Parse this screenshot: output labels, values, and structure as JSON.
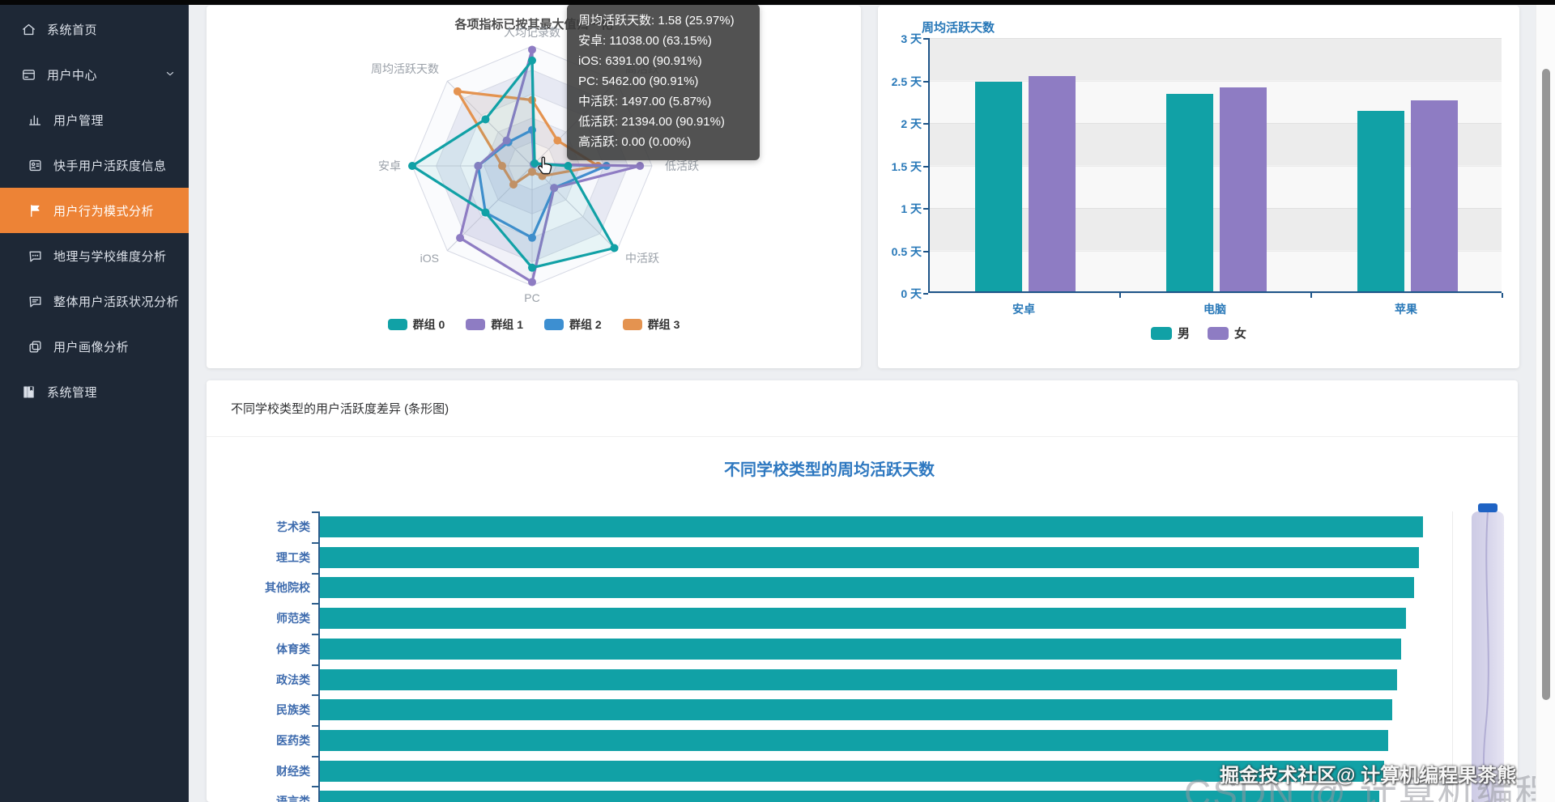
{
  "sidebar": {
    "items": [
      {
        "name": "system-home",
        "label": "系统首页",
        "icon": "home-icon",
        "indent": false,
        "active": false,
        "chevron": false
      },
      {
        "name": "user-center",
        "label": "用户中心",
        "icon": "window-icon",
        "indent": false,
        "active": false,
        "chevron": true
      },
      {
        "name": "user-management",
        "label": "用户管理",
        "icon": "bar-chart-icon",
        "indent": true,
        "active": false,
        "chevron": false
      },
      {
        "name": "kuaishou-activity-info",
        "label": "快手用户活跃度信息",
        "icon": "id-card-icon",
        "indent": true,
        "active": false,
        "chevron": false
      },
      {
        "name": "behavior-pattern-analysis",
        "label": "用户行为模式分析",
        "icon": "flag-icon",
        "indent": true,
        "active": true,
        "chevron": false
      },
      {
        "name": "geo-school-analysis",
        "label": "地理与学校维度分析",
        "icon": "comment-dots-icon",
        "indent": true,
        "active": false,
        "chevron": false
      },
      {
        "name": "overall-activity-analysis",
        "label": "整体用户活跃状况分析",
        "icon": "comment-icon",
        "indent": true,
        "active": false,
        "chevron": false
      },
      {
        "name": "user-portrait-analysis",
        "label": "用户画像分析",
        "icon": "copy-icon",
        "indent": true,
        "active": false,
        "chevron": false
      },
      {
        "name": "system-management",
        "label": "系统管理",
        "icon": "notebook-icon",
        "indent": false,
        "active": false,
        "chevron": false
      }
    ]
  },
  "radar_card": {
    "title": "各项指标已按其最大值归一化"
  },
  "gender_card": {
    "title": "周均活跃天数"
  },
  "school_card": {
    "header": "不同学校类型的用户活跃度差异 (条形图)",
    "chart_title": "不同学校类型的周均活跃天数"
  },
  "tooltip": {
    "lines": [
      "周均活跃天数: 1.58 (25.97%)",
      "安卓: 11038.00 (63.15%)",
      "iOS: 6391.00 (90.91%)",
      "PC: 5462.00 (90.91%)",
      "中活跃: 1497.00 (5.87%)",
      "低活跃: 21394.00 (90.91%)",
      "高活跃: 0.00 (0.00%)"
    ]
  },
  "watermark": {
    "small": "掘金技术社区@ 计算机编程果茶熊",
    "large": "CSDN @ 计算机编程果茶熊"
  },
  "colors": {
    "accent_orange": "#ed8336",
    "teal": "#11a1a6",
    "purple": "#8e7cc3",
    "blue": "#3d8fd1",
    "orange": "#e49350",
    "axis_blue": "#2878b8"
  },
  "chart_data": [
    {
      "id": "radar",
      "type": "radar",
      "title": "各项指标已按其最大值归一化",
      "axes": [
        "人均记录数",
        "高活跃",
        "低活跃",
        "中活跃",
        "PC",
        "iOS",
        "安卓",
        "周均活跃天数"
      ],
      "value_scale": "fraction of axis max (normalized)",
      "series": [
        {
          "name": "群组 0",
          "color": "#11a1a6",
          "values": [
            0.88,
            0.03,
            0.3,
            0.97,
            0.85,
            0.55,
            1.0,
            0.55
          ]
        },
        {
          "name": "群组 1",
          "color": "#8e7cc3",
          "values": [
            0.97,
            0.02,
            0.9,
            0.26,
            0.97,
            0.85,
            0.45,
            0.3
          ]
        },
        {
          "name": "群组 2",
          "color": "#3d8fd1",
          "values": [
            0.3,
            0.02,
            0.62,
            0.26,
            0.6,
            0.55,
            0.45,
            0.28
          ]
        },
        {
          "name": "群组 3",
          "color": "#e49350",
          "values": [
            0.55,
            0.3,
            0.55,
            0.12,
            0.05,
            0.22,
            0.25,
            0.88
          ]
        }
      ],
      "legend": [
        "群组 0",
        "群组 1",
        "群组 2",
        "群组 3"
      ],
      "legend_position": "bottom"
    },
    {
      "id": "gender-device",
      "type": "bar",
      "title": "周均活跃天数",
      "categories": [
        "安卓",
        "电脑",
        "苹果"
      ],
      "series": [
        {
          "name": "男",
          "color": "#11a1a6",
          "values": [
            2.47,
            2.32,
            2.12
          ]
        },
        {
          "name": "女",
          "color": "#8e7cc3",
          "values": [
            2.53,
            2.4,
            2.25
          ]
        }
      ],
      "ylim": [
        0,
        3
      ],
      "y_ticks": [
        "3 天",
        "2.5 天",
        "2 天",
        "1.5 天",
        "1 天",
        "0.5 天",
        "0 天"
      ],
      "grid": true,
      "legend_position": "bottom"
    },
    {
      "id": "school-type",
      "type": "bar-horizontal",
      "title": "不同学校类型的周均活跃天数",
      "categories": [
        "艺术类",
        "理工类",
        "其他院校",
        "师范类",
        "体育类",
        "政法类",
        "民族类",
        "医药类",
        "财经类",
        "语言类"
      ],
      "values": [
        2.52,
        2.51,
        2.5,
        2.48,
        2.47,
        2.46,
        2.45,
        2.44,
        2.43,
        2.42
      ],
      "xlim_render": [
        0,
        2.59
      ],
      "color": "#11a1a6",
      "note": "x axis cut off at bottom of viewport; values estimated from bar lengths"
    }
  ]
}
